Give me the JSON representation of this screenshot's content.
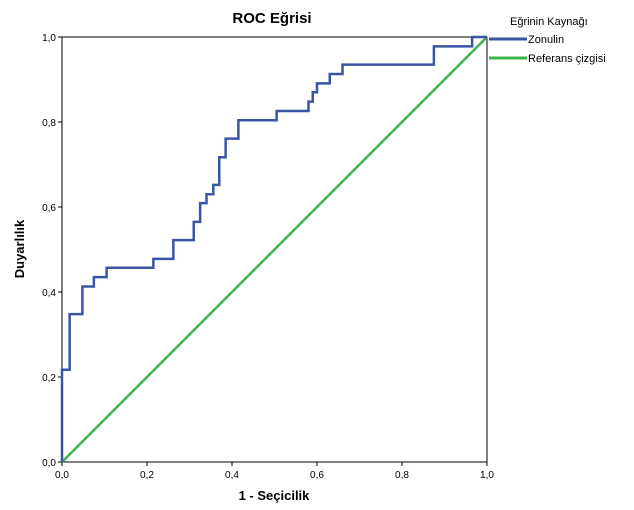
{
  "chart_data": {
    "type": "line",
    "title": "ROC Eğrisi",
    "xlabel": "1 - Seçicilik",
    "ylabel": "Duyarlılık",
    "xlim": [
      0,
      1
    ],
    "ylim": [
      0,
      1
    ],
    "x_ticks": [
      "0,0",
      "0,2",
      "0,4",
      "0,6",
      "0,8",
      "1,0"
    ],
    "y_ticks": [
      "0,0",
      "0,2",
      "0,4",
      "0,6",
      "0,8",
      "1,0"
    ],
    "grid": false,
    "legend": {
      "title": "Eğrinin Kaynağı",
      "placement": "top-right-outside"
    },
    "series": [
      {
        "name": "Zonulin",
        "color": "#3a55a4",
        "x": [
          0,
          0,
          0.018,
          0.018,
          0.048,
          0.048,
          0.075,
          0.075,
          0.105,
          0.105,
          0.215,
          0.215,
          0.262,
          0.262,
          0.31,
          0.31,
          0.325,
          0.325,
          0.34,
          0.34,
          0.356,
          0.356,
          0.37,
          0.37,
          0.385,
          0.385,
          0.415,
          0.415,
          0.505,
          0.505,
          0.58,
          0.58,
          0.59,
          0.59,
          0.6,
          0.6,
          0.63,
          0.63,
          0.66,
          0.66,
          0.875,
          0.875,
          0.965,
          0.965,
          1.0
        ],
        "y": [
          0,
          0.217,
          0.217,
          0.348,
          0.348,
          0.413,
          0.413,
          0.435,
          0.435,
          0.457,
          0.457,
          0.478,
          0.478,
          0.522,
          0.522,
          0.565,
          0.565,
          0.609,
          0.609,
          0.63,
          0.63,
          0.652,
          0.652,
          0.717,
          0.717,
          0.761,
          0.761,
          0.804,
          0.804,
          0.826,
          0.826,
          0.848,
          0.848,
          0.87,
          0.87,
          0.891,
          0.891,
          0.913,
          0.913,
          0.935,
          0.935,
          0.978,
          0.978,
          1.0,
          1.0
        ]
      },
      {
        "name": "Referans çizgisi",
        "color": "#3cb54a",
        "x": [
          0,
          1
        ],
        "y": [
          0,
          1
        ]
      }
    ]
  }
}
